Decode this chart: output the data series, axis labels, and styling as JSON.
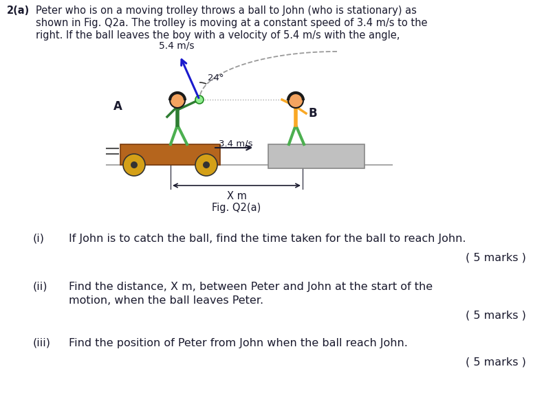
{
  "bg_color": "#ffffff",
  "text_color": "#1a1a2e",
  "fig_label": "Fig. Q2(a)",
  "velocity_label": "5.4 m/s",
  "angle_label": "24°",
  "trolley_speed_label": "3.4 m/s",
  "distance_label": "X m",
  "label_A": "A",
  "label_B": "B",
  "trolley_color": "#b5651d",
  "wheel_color": "#d4a017",
  "platform_color": "#c0c0c0",
  "person_green_body": "#2e7d32",
  "person_green_pants": "#4caf50",
  "person_yellow_body": "#f9a825",
  "skin_color": "#f4a460",
  "hair_color": "#1a1a1a",
  "arrow_color": "#1a1acd",
  "ground_color": "#aaaaaa",
  "q1_num": "(i)",
  "q1_text": "If John is to catch the ball, find the time taken for the ball to reach John.",
  "q1_marks": "( 5 marks )",
  "q2_num": "(ii)",
  "q2_line1": "Find the distance, X m, between Peter and John at the start of the",
  "q2_line2": "motion, when the ball leaves Peter.",
  "q2_marks": "( 5 marks )",
  "q3_num": "(iii)",
  "q3_text": "Find the position of Peter from John when the ball reach John.",
  "q3_marks": "( 5 marks )"
}
